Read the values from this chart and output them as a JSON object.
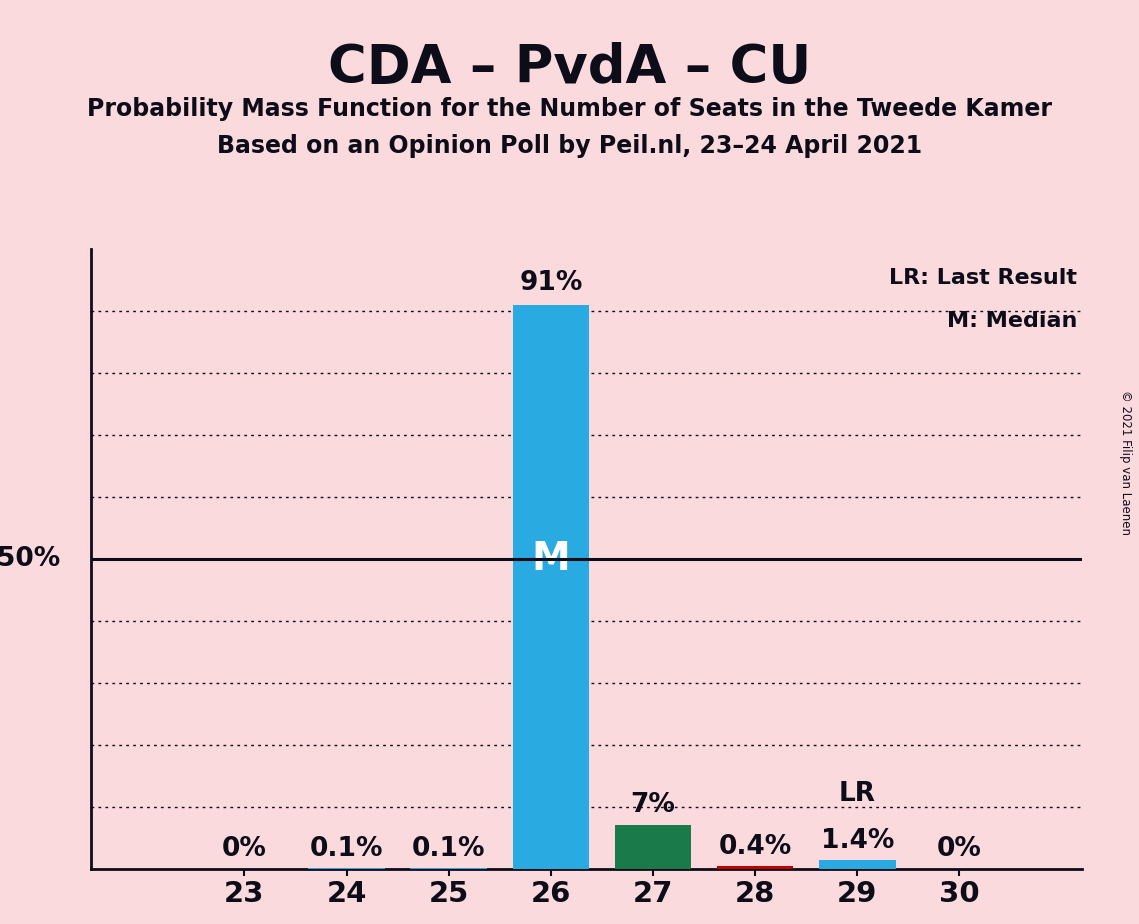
{
  "title": "CDA – PvdA – CU",
  "subtitle1": "Probability Mass Function for the Number of Seats in the Tweede Kamer",
  "subtitle2": "Based on an Opinion Poll by Peil.nl, 23–24 April 2021",
  "copyright": "© 2021 Filip van Laenen",
  "categories": [
    23,
    24,
    25,
    26,
    27,
    28,
    29,
    30
  ],
  "values": [
    0.0,
    0.1,
    0.1,
    91.0,
    7.0,
    0.4,
    1.4,
    0.0
  ],
  "bar_colors": [
    "#29ABE2",
    "#29ABE2",
    "#29ABE2",
    "#29ABE2",
    "#1A7A4A",
    "#C00000",
    "#29ABE2",
    "#29ABE2"
  ],
  "background_color": "#FADADD",
  "median_seat": 26,
  "lr_seat": 29,
  "grid_y_values": [
    10,
    20,
    30,
    40,
    50,
    60,
    70,
    80,
    90
  ],
  "legend_lr": "LR: Last Result",
  "legend_m": "M: Median",
  "xlim_left": 21.5,
  "xlim_right": 31.2
}
